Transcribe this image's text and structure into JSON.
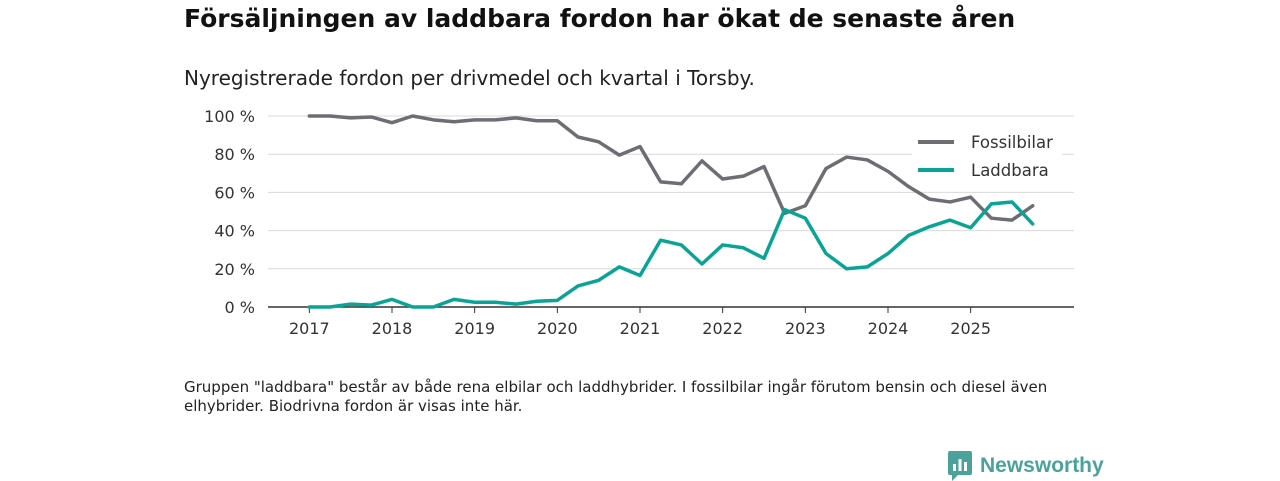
{
  "title": "Försäljningen av laddbara fordon har ökat de senaste åren",
  "subtitle": "Nyregistrerade fordon per drivmedel och kvartal i Torsby.",
  "footnote": "Gruppen \"laddbara\" består av både rena elbilar och laddhybrider. I fossilbilar ingår förutom bensin och diesel även elhybrider. Biodrivna fordon är visas inte här.",
  "brand": {
    "name": "Newsworthy",
    "color": "#4aa29a",
    "icon": "bar-chart-speech-icon"
  },
  "chart_data": {
    "type": "line",
    "title": "Försäljningen av laddbara fordon har ökat de senaste åren",
    "xlabel": "",
    "ylabel": "",
    "ylim": [
      0,
      100
    ],
    "yticks": [
      0,
      20,
      40,
      60,
      80,
      100
    ],
    "ytick_labels": [
      "0 %",
      "20 %",
      "40 %",
      "60 %",
      "80 %",
      "100 %"
    ],
    "xticks": [
      2017,
      2018,
      2019,
      2020,
      2021,
      2022,
      2023,
      2024,
      2025
    ],
    "xtick_labels": [
      "2017",
      "2018",
      "2019",
      "2020",
      "2021",
      "2022",
      "2023",
      "2024",
      "2025"
    ],
    "x": [
      2017.0,
      2017.25,
      2017.5,
      2017.75,
      2018.0,
      2018.25,
      2018.5,
      2018.75,
      2019.0,
      2019.25,
      2019.5,
      2019.75,
      2020.0,
      2020.25,
      2020.5,
      2020.75,
      2021.0,
      2021.25,
      2021.5,
      2021.75,
      2022.0,
      2022.25,
      2022.5,
      2022.75,
      2023.0,
      2023.25,
      2023.5,
      2023.75,
      2024.0,
      2024.25,
      2024.5,
      2024.75,
      2025.0,
      2025.25,
      2025.5,
      2025.75
    ],
    "grid": true,
    "legend_position": "top-right",
    "series": [
      {
        "name": "Fossilbilar",
        "color": "#6e6d73",
        "values": [
          100,
          100,
          99,
          99.5,
          96.5,
          100,
          98,
          97,
          98,
          98,
          99,
          97.5,
          97.5,
          89,
          86.5,
          79.5,
          84,
          65.5,
          64.5,
          76.5,
          67,
          68.5,
          73.5,
          49,
          53,
          72.5,
          78.5,
          77,
          71,
          63,
          56.5,
          55,
          57.5,
          46.5,
          45.5,
          53
        ]
      },
      {
        "name": "Laddbara",
        "color": "#0aa396",
        "values": [
          0,
          0,
          1.5,
          1,
          4,
          0,
          0,
          4,
          2.5,
          2.5,
          1.5,
          3,
          3.5,
          11,
          14,
          21,
          16.5,
          35,
          32.5,
          22.5,
          32.5,
          31,
          25.5,
          51,
          46.5,
          28,
          20,
          21,
          28,
          37.5,
          42,
          45.5,
          41.5,
          54,
          55,
          43.5
        ]
      }
    ]
  }
}
